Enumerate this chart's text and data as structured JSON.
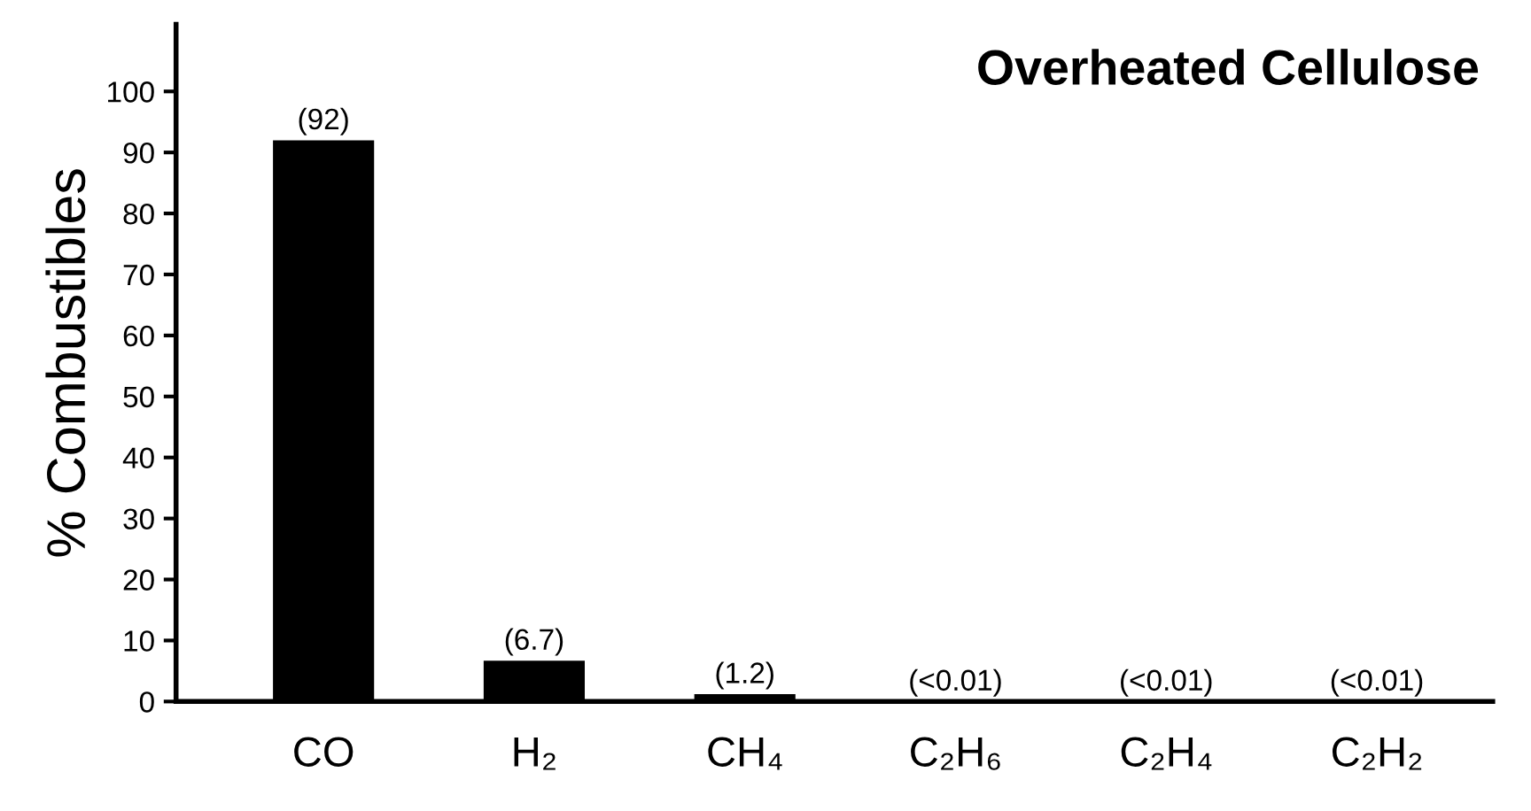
{
  "chart_data": {
    "type": "bar",
    "title": "Overheated Cellulose",
    "ylabel": "% Combustibles",
    "categories": [
      "CO",
      "H₂",
      "CH₄",
      "C₂H₆",
      "C₂H₄",
      "C₂H₂"
    ],
    "values": [
      92,
      6.7,
      1.2,
      0.01,
      0.01,
      0.01
    ],
    "value_labels": [
      "(92)",
      "(6.7)",
      "(1.2)",
      "(<0.01)",
      "(<0.01)",
      "(<0.01)"
    ],
    "color": "#000000",
    "ylim": [
      0,
      111
    ],
    "yticks": [
      0,
      10,
      20,
      30,
      40,
      50,
      60,
      70,
      80,
      90,
      100
    ],
    "grid": false
  }
}
